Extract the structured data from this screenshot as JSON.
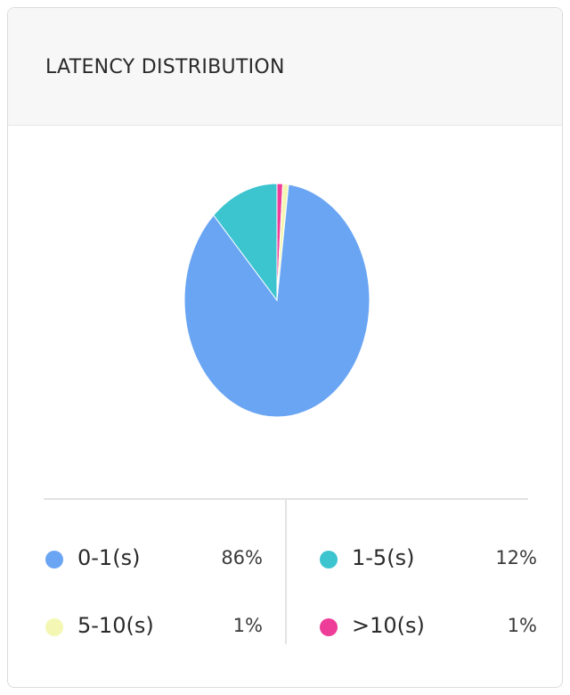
{
  "card": {
    "title": "LATENCY DISTRIBUTION"
  },
  "chart_data": {
    "type": "pie",
    "title": "LATENCY DISTRIBUTION",
    "categories": [
      "0-1(s)",
      "1-5(s)",
      "5-10(s)",
      ">10(s)"
    ],
    "values": [
      86,
      12,
      1,
      1
    ],
    "value_labels": [
      "86%",
      "12%",
      "1%",
      "1%"
    ],
    "colors": [
      "#6aa5f4",
      "#3cc4cf",
      "#f4f7b4",
      "#ee3d98"
    ],
    "draw_order": [
      3,
      2,
      0,
      1
    ],
    "legend_position": "bottom",
    "grid": false
  },
  "legend": {
    "items": [
      {
        "label": "0-1(s)",
        "value": "86%",
        "color": "#6aa5f4"
      },
      {
        "label": "1-5(s)",
        "value": "12%",
        "color": "#3cc4cf"
      },
      {
        "label": "5-10(s)",
        "value": "1%",
        "color": "#f4f7b4"
      },
      {
        "label": ">10(s)",
        "value": "1%",
        "color": "#ee3d98"
      }
    ]
  }
}
